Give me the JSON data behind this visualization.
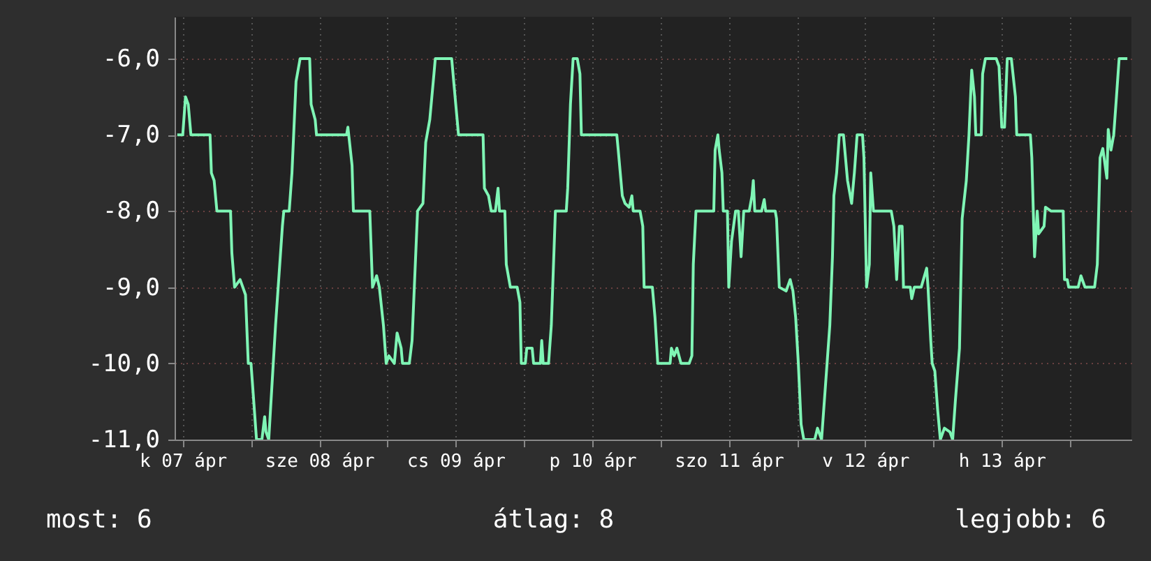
{
  "chart_data": {
    "type": "line",
    "x": [
      "--04-07T11:02",
      "--04-07T12:00",
      "--04-07T12:29",
      "--04-07T12:58",
      "--04-07T13:26",
      "--04-07T16:48",
      "--04-07T17:02",
      "--04-07T17:31",
      "--04-07T18:00",
      "--04-07T20:24",
      "--04-07T20:38",
      "--04-07T21:07",
      "--04-07T22:05",
      "--04-07T23:02",
      "--04-07T23:31",
      "--04-08T00:00",
      "--04-08T00:29",
      "--04-08T00:58",
      "--04-08T01:55",
      "--04-08T02:24",
      "--04-08T02:38",
      "--04-08T03:07",
      "--04-08T03:50",
      "--04-08T04:19",
      "--04-08T05:31",
      "--04-08T05:46",
      "--04-08T06:43",
      "--04-08T07:12",
      "--04-08T07:55",
      "--04-08T08:38",
      "--04-08T10:19",
      "--04-08T10:34",
      "--04-08T11:17",
      "--04-08T11:31",
      "--04-08T16:48",
      "--04-08T17:02",
      "--04-08T17:46",
      "--04-08T18:00",
      "--04-08T20:53",
      "--04-08T21:22",
      "--04-08T22:05",
      "--04-08T22:34",
      "--04-08T23:17",
      "--04-08T23:46",
      "--04-09T00:14",
      "--04-09T01:12",
      "--04-09T01:41",
      "--04-09T02:24",
      "--04-09T02:38",
      "--04-09T03:50",
      "--04-09T04:19",
      "--04-09T04:48",
      "--04-09T05:17",
      "--04-09T06:14",
      "--04-09T06:43",
      "--04-09T07:26",
      "--04-09T08:10",
      "--04-09T08:24",
      "--04-09T11:17",
      "--04-09T12:00",
      "--04-09T12:29",
      "--04-09T16:48",
      "--04-09T17:02",
      "--04-09T17:46",
      "--04-09T18:14",
      "--04-09T18:58",
      "--04-09T19:26",
      "--04-09T19:41",
      "--04-09T20:38",
      "--04-09T20:53",
      "--04-09T21:36",
      "--04-09T22:48",
      "--04-09T23:17",
      "--04-09T23:31",
      "--04-10T00:14",
      "--04-10T00:29",
      "--04-10T01:26",
      "--04-10T01:41",
      "--04-10T02:53",
      "--04-10T03:07",
      "--04-10T03:22",
      "--04-10T04:19",
      "--04-10T04:48",
      "--04-10T05:17",
      "--04-10T05:31",
      "--04-10T07:26",
      "--04-10T07:41",
      "--04-10T08:10",
      "--04-10T08:38",
      "--04-10T09:22",
      "--04-10T09:50",
      "--04-10T10:05",
      "--04-10T16:19",
      "--04-10T16:34",
      "--04-10T17:17",
      "--04-10T17:46",
      "--04-10T18:29",
      "--04-10T18:58",
      "--04-10T19:12",
      "--04-10T20:24",
      "--04-10T20:53",
      "--04-10T21:07",
      "--04-10T22:34",
      "--04-10T23:02",
      "--04-10T23:31",
      "--04-11T01:41",
      "--04-11T01:55",
      "--04-11T02:24",
      "--04-11T02:53",
      "--04-11T03:36",
      "--04-11T05:02",
      "--04-11T05:31",
      "--04-11T05:46",
      "--04-11T06:14",
      "--04-11T09:22",
      "--04-11T09:36",
      "--04-11T10:05",
      "--04-11T10:19",
      "--04-11T10:48",
      "--04-11T11:02",
      "--04-11T11:46",
      "--04-11T12:00",
      "--04-11T12:29",
      "--04-11T13:12",
      "--04-11T13:41",
      "--04-11T14:10",
      "--04-11T14:38",
      "--04-11T15:36",
      "--04-11T16:05",
      "--04-11T16:19",
      "--04-11T16:34",
      "--04-11T17:46",
      "--04-11T18:14",
      "--04-11T18:29",
      "--04-11T20:10",
      "--04-11T20:24",
      "--04-11T20:53",
      "--04-11T22:05",
      "--04-11T22:48",
      "--04-11T23:17",
      "--04-11T23:46",
      "--04-12T00:14",
      "--04-12T00:43",
      "--04-12T01:12",
      "--04-12T03:07",
      "--04-12T03:36",
      "--04-12T04:19",
      "--04-12T04:48",
      "--04-12T05:17",
      "--04-12T05:46",
      "--04-12T06:14",
      "--04-12T06:29",
      "--04-12T06:58",
      "--04-12T07:26",
      "--04-12T08:10",
      "--04-12T08:53",
      "--04-12T09:36",
      "--04-12T10:05",
      "--04-12T10:34",
      "--04-12T11:31",
      "--04-12T11:46",
      "--04-12T12:14",
      "--04-12T12:43",
      "--04-12T12:58",
      "--04-12T13:26",
      "--04-12T16:34",
      "--04-12T17:02",
      "--04-12T17:31",
      "--04-12T18:00",
      "--04-12T18:29",
      "--04-12T18:43",
      "--04-12T19:55",
      "--04-12T20:10",
      "--04-12T20:38",
      "--04-12T21:50",
      "--04-12T22:48",
      "--04-12T23:02",
      "--04-12T23:31",
      "--04-12T23:46",
      "--04-13T00:14",
      "--04-13T00:43",
      "--04-13T01:12",
      "--04-13T01:55",
      "--04-13T02:53",
      "--04-13T03:22",
      "--04-13T03:50",
      "--04-13T04:34",
      "--04-13T05:02",
      "--04-13T05:46",
      "--04-13T06:14",
      "--04-13T06:43",
      "--04-13T07:12",
      "--04-13T07:26",
      "--04-13T08:24",
      "--04-13T08:38",
      "--04-13T09:07",
      "--04-13T11:02",
      "--04-13T11:31",
      "--04-13T12:00",
      "--04-13T12:29",
      "--04-13T12:58",
      "--04-13T13:41",
      "--04-13T14:24",
      "--04-13T14:38",
      "--04-13T17:02",
      "--04-13T17:17",
      "--04-13T17:46",
      "--04-13T18:14",
      "--04-13T18:29",
      "--04-13T19:26",
      "--04-13T19:41",
      "--04-13T20:38",
      "--04-13T22:48",
      "--04-13T23:02",
      "--04-13T23:31",
      "--04-13T23:46",
      "--04-14T01:26",
      "--04-14T01:55",
      "--04-14T02:38",
      "--04-14T04:19",
      "--04-14T04:48",
      "--04-14T05:17",
      "--04-14T05:46",
      "--04-14T06:29",
      "--04-14T06:43",
      "--04-14T07:12",
      "--04-14T07:41",
      "--04-14T08:10",
      "--04-14T08:38",
      "--04-14T10:05"
    ],
    "series": [
      {
        "color": "#7ff5b5",
        "values": [
          -7,
          -7,
          -6.5,
          -6.6,
          -7,
          -7,
          -7.5,
          -7.6,
          -8,
          -8,
          -8.55,
          -9,
          -8.9,
          -9.1,
          -10,
          -10,
          -10.5,
          -11,
          -11,
          -10.7,
          -10.9,
          -11,
          -10.1,
          -9.5,
          -8.2,
          -8,
          -8,
          -7.5,
          -6.3,
          -6,
          -6,
          -6.6,
          -6.8,
          -7,
          -7,
          -6.9,
          -7.4,
          -8,
          -8,
          -9,
          -8.85,
          -9,
          -9.5,
          -10,
          -9.9,
          -10,
          -9.6,
          -9.8,
          -10,
          -10,
          -9.7,
          -8.85,
          -8,
          -7.9,
          -7.1,
          -6.8,
          -6.2,
          -6,
          -6,
          -6.6,
          -7,
          -7,
          -7.7,
          -7.8,
          -8,
          -8,
          -7.7,
          -8,
          -8,
          -8.7,
          -9,
          -9,
          -9.2,
          -10,
          -10,
          -9.8,
          -9.8,
          -10,
          -10,
          -9.7,
          -10,
          -10,
          -9.5,
          -8.5,
          -8,
          -8,
          -7.7,
          -6.6,
          -6,
          -6,
          -6.2,
          -7,
          -7,
          -7.2,
          -7.8,
          -7.9,
          -7.95,
          -7.8,
          -8,
          -8,
          -8.2,
          -9,
          -9,
          -9.4,
          -10,
          -10,
          -9.8,
          -9.9,
          -9.8,
          -10,
          -10,
          -9.9,
          -8.7,
          -8,
          -8,
          -7.2,
          -7,
          -7.2,
          -7.5,
          -8,
          -8,
          -9,
          -8.4,
          -8,
          -8,
          -8.6,
          -8,
          -8,
          -7.8,
          -7.6,
          -8,
          -8,
          -7.85,
          -8,
          -8,
          -8.1,
          -9,
          -9.05,
          -8.9,
          -9.05,
          -9.4,
          -10,
          -10.8,
          -11,
          -11,
          -10.85,
          -11,
          -10.5,
          -10,
          -9.5,
          -8.6,
          -7.8,
          -7.5,
          -7,
          -7,
          -7.6,
          -7.9,
          -7.5,
          -7,
          -7,
          -7.3,
          -9,
          -8.7,
          -7.5,
          -8,
          -8,
          -8.2,
          -8.9,
          -8.2,
          -8.2,
          -9,
          -9,
          -9.15,
          -9,
          -9,
          -8.75,
          -9,
          -9.7,
          -10,
          -10.1,
          -10.6,
          -11,
          -10.85,
          -10.9,
          -11,
          -10.5,
          -9.8,
          -8.1,
          -7.6,
          -7,
          -6.15,
          -6.5,
          -7,
          -7,
          -6.2,
          -6,
          -6,
          -6.1,
          -6.9,
          -6.9,
          -6,
          -6,
          -6.5,
          -7,
          -7,
          -7.3,
          -8.6,
          -8,
          -8.3,
          -8.2,
          -7.95,
          -8,
          -8,
          -8.9,
          -8.9,
          -9,
          -9,
          -8.85,
          -9,
          -9,
          -8.7,
          -7.3,
          -7.18,
          -7.57,
          -6.93,
          -7.2,
          -7,
          -6.5,
          -6,
          -6
        ]
      }
    ],
    "xlim": [
      "--04-07T10:34",
      "--04-14T10:48"
    ],
    "xticks": [
      {
        "value": "--04-07T12:00",
        "label": "k 07 ápr"
      },
      {
        "value": "--04-08T00:00",
        "label": null
      },
      {
        "value": "--04-08T12:00",
        "label": "sze 08 ápr"
      },
      {
        "value": "--04-09T00:00",
        "label": null
      },
      {
        "value": "--04-09T12:00",
        "label": "cs 09 ápr"
      },
      {
        "value": "--04-10T00:00",
        "label": null
      },
      {
        "value": "--04-10T12:00",
        "label": "p 10 ápr"
      },
      {
        "value": "--04-11T00:00",
        "label": null
      },
      {
        "value": "--04-11T12:00",
        "label": "szo 11 ápr"
      },
      {
        "value": "--04-12T00:00",
        "label": null
      },
      {
        "value": "--04-12T12:00",
        "label": "v 12 ápr"
      },
      {
        "value": "--04-13T00:00",
        "label": null
      },
      {
        "value": "--04-13T12:00",
        "label": "h 13 ápr"
      },
      {
        "value": "--04-14T00:00",
        "label": null
      }
    ],
    "ylim": [
      -11,
      -5.45
    ],
    "yticks": [
      {
        "value": -11,
        "label": "-11,0"
      },
      {
        "value": -10,
        "label": "-10,0"
      },
      {
        "value": -9,
        "label": "-9,0"
      },
      {
        "value": -8,
        "label": "-8,0"
      },
      {
        "value": -7,
        "label": "-7,0"
      },
      {
        "value": -6,
        "label": "-6,0"
      }
    ],
    "grid": true,
    "annotations": [
      "most: 6",
      "átlag: 8",
      "legjobb: 6"
    ]
  }
}
